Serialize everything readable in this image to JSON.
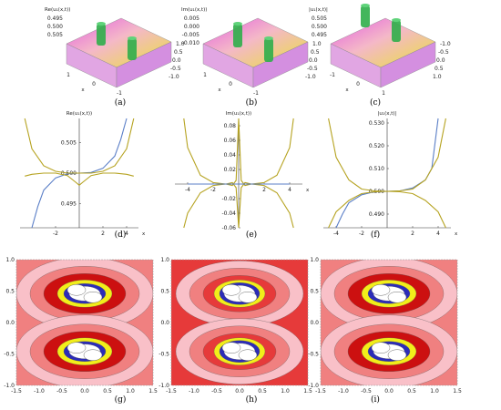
{
  "captions": [
    "(a)",
    "(b)",
    "(c)",
    "(d)",
    "(e)",
    "(f)",
    "(g)",
    "(h)",
    "(i)"
  ],
  "surfaces": [
    {
      "zlabel": "Re(u₁(x,t))",
      "zticks": [
        "0.495",
        "0.500",
        "0.505"
      ],
      "yticks": [
        "1.0",
        "0.5",
        "0.0",
        "-0.5",
        "-1.0"
      ],
      "xticks": [
        "1",
        "0",
        "-1"
      ],
      "xlabel": "x",
      "colors": [
        "#2fae4a",
        "#e9e13a",
        "#e35de0"
      ]
    },
    {
      "zlabel": "Im(u₁(x,t))",
      "zticks": [
        "0.005",
        "0.000",
        "-0.005",
        "-0.010"
      ],
      "yticks": [
        "1.0",
        "0.5",
        "0.0",
        "-0.5",
        "-1.0"
      ],
      "xticks": [
        "1",
        "0",
        "-1"
      ],
      "xlabel": "x",
      "colors": [
        "#2fae4a",
        "#e9e13a",
        "#e35de0"
      ]
    },
    {
      "zlabel": "|u₁(x,t)|",
      "zticks": [
        "0.505",
        "0.500",
        "0.495"
      ],
      "yticks": [
        "-1.0",
        "-0.5",
        "0.0",
        "0.5",
        "1.0"
      ],
      "xticks": [
        "-1",
        "0",
        "1"
      ],
      "xlabel": "x",
      "colors": [
        "#2fae4a",
        "#e9e13a",
        "#e35de0"
      ]
    }
  ],
  "chart_data": [
    {
      "type": "line",
      "ylabel": "Re(u₁(x,t))",
      "xlabel": "x",
      "xticks": [
        -2,
        2,
        4
      ],
      "yticks": [
        0.495,
        0.5,
        0.505
      ],
      "xlim": [
        -5,
        5
      ],
      "ylim": [
        0.491,
        0.509
      ],
      "series": [
        {
          "color": "#5b7fc7",
          "x": [
            -4.0,
            -3.5,
            -3.0,
            -2.0,
            -1.0,
            0.0,
            1.0,
            2.0,
            3.0,
            3.5,
            4.0
          ],
          "y": [
            0.491,
            0.4945,
            0.4972,
            0.4992,
            0.4999,
            0.5,
            0.5001,
            0.5008,
            0.5028,
            0.5055,
            0.509
          ]
        },
        {
          "color": "#b6a321",
          "x": [
            -4.6,
            -4.0,
            -3.0,
            -2.0,
            -1.0,
            0.0,
            1.0,
            2.0,
            3.0,
            4.0,
            4.6
          ],
          "y": [
            0.509,
            0.504,
            0.5012,
            0.5003,
            0.5,
            0.5,
            0.5,
            0.5003,
            0.5012,
            0.504,
            0.509
          ]
        },
        {
          "color": "#b6a321",
          "x": [
            -4.6,
            -4.0,
            -3.0,
            -2.0,
            -1.0,
            -0.3,
            0.0,
            0.3,
            1.0,
            2.0,
            3.0,
            4.0,
            4.6
          ],
          "y": [
            0.4995,
            0.4998,
            0.5,
            0.5,
            0.4996,
            0.4985,
            0.498,
            0.4985,
            0.4996,
            0.5,
            0.5,
            0.4998,
            0.4995
          ]
        }
      ]
    },
    {
      "type": "line",
      "ylabel": "Im(u₁(x,t))",
      "xlabel": "x",
      "xticks": [
        -4,
        -2,
        2,
        4
      ],
      "yticks": [
        -0.06,
        -0.04,
        -0.02,
        0.02,
        0.04,
        0.06,
        0.08
      ],
      "xlim": [
        -5,
        5
      ],
      "ylim": [
        -0.06,
        0.09
      ],
      "series": [
        {
          "color": "#b6a321",
          "x": [
            -4.3,
            -4.0,
            -3.0,
            -2.0,
            -1.0,
            -0.5,
            -0.2,
            0.0,
            0.2,
            0.5,
            1.0,
            2.0,
            3.0,
            4.0,
            4.3
          ],
          "y": [
            0.09,
            0.05,
            0.012,
            0.002,
            0.0,
            -0.002,
            0.005,
            0.09,
            0.005,
            -0.002,
            0.0,
            0.002,
            0.012,
            0.05,
            0.09
          ]
        },
        {
          "color": "#b6a321",
          "x": [
            -4.3,
            -4.0,
            -3.0,
            -2.0,
            -1.0,
            -0.5,
            -0.2,
            0.0,
            0.2,
            0.5,
            1.0,
            2.0,
            3.0,
            4.0,
            4.3
          ],
          "y": [
            -0.06,
            -0.04,
            -0.012,
            -0.002,
            0.0,
            0.002,
            -0.005,
            -0.06,
            -0.005,
            0.002,
            0.0,
            -0.002,
            -0.012,
            -0.04,
            -0.06
          ]
        },
        {
          "color": "#5b7fc7",
          "x": [
            -4.0,
            -2.0,
            0.0,
            2.0,
            4.0
          ],
          "y": [
            0.0,
            0.0,
            0.0,
            0.0,
            0.0
          ]
        }
      ]
    },
    {
      "type": "line",
      "ylabel": "|u₁(x,t)|",
      "xlabel": "x",
      "xticks": [
        -4,
        -2,
        2,
        4
      ],
      "yticks": [
        0.49,
        0.5,
        0.51,
        0.52,
        0.53
      ],
      "xlim": [
        -5,
        5
      ],
      "ylim": [
        0.484,
        0.532
      ],
      "series": [
        {
          "color": "#5b7fc7",
          "x": [
            -4.0,
            -3.5,
            -3.0,
            -2.0,
            -1.0,
            0.0,
            1.0,
            2.0,
            3.0,
            3.5,
            4.0
          ],
          "y": [
            0.484,
            0.49,
            0.495,
            0.4985,
            0.4998,
            0.5,
            0.5002,
            0.5015,
            0.505,
            0.51,
            0.532
          ]
        },
        {
          "color": "#b6a321",
          "x": [
            -4.6,
            -4.0,
            -3.0,
            -2.0,
            -1.0,
            0.0,
            1.0,
            2.0,
            3.0,
            4.0,
            4.6
          ],
          "y": [
            0.532,
            0.515,
            0.505,
            0.501,
            0.5002,
            0.5,
            0.5002,
            0.501,
            0.505,
            0.515,
            0.532
          ]
        },
        {
          "color": "#b6a321",
          "x": [
            -4.6,
            -4.0,
            -3.0,
            -2.0,
            -1.0,
            0.0,
            1.0,
            2.0,
            3.0,
            4.0,
            4.6
          ],
          "y": [
            0.484,
            0.491,
            0.496,
            0.499,
            0.4998,
            0.5,
            0.4998,
            0.499,
            0.496,
            0.491,
            0.484
          ]
        }
      ]
    },
    {
      "type": "heatmap",
      "xticks": [
        "-1.5",
        "-1.0",
        "-0.5",
        "0.0",
        "0.5",
        "1.0",
        "1.5"
      ],
      "yticks": [
        "1.0",
        "0.5",
        "0.0",
        "-0.5",
        "-1.0"
      ],
      "colors": [
        "#ffffff",
        "#2c2cb8",
        "#f2ee1a",
        "#cc1010",
        "#e63a3a",
        "#f08080",
        "#f9c0c8"
      ]
    },
    {
      "type": "heatmap",
      "xticks": [
        "-1.5",
        "-1.0",
        "-0.5",
        "0.0",
        "0.5",
        "1.0",
        "1.5"
      ],
      "yticks": [
        "1.0",
        "0.5",
        "0.0",
        "-0.5",
        "-1.0"
      ],
      "colors": [
        "#ffffff",
        "#2c2cb8",
        "#f2ee1a",
        "#cc1010",
        "#e63a3a",
        "#f08080",
        "#f9c0c8"
      ]
    },
    {
      "type": "heatmap",
      "xticks": [
        "-1.5",
        "-1.0",
        "-0.5",
        "0.0",
        "0.5",
        "1.0",
        "1.5"
      ],
      "yticks": [
        "1.0",
        "0.5",
        "0.0",
        "-0.5",
        "-1.0"
      ],
      "colors": [
        "#ffffff",
        "#2c2cb8",
        "#f2ee1a",
        "#cc1010",
        "#e63a3a",
        "#f08080",
        "#f9c0c8"
      ]
    }
  ]
}
